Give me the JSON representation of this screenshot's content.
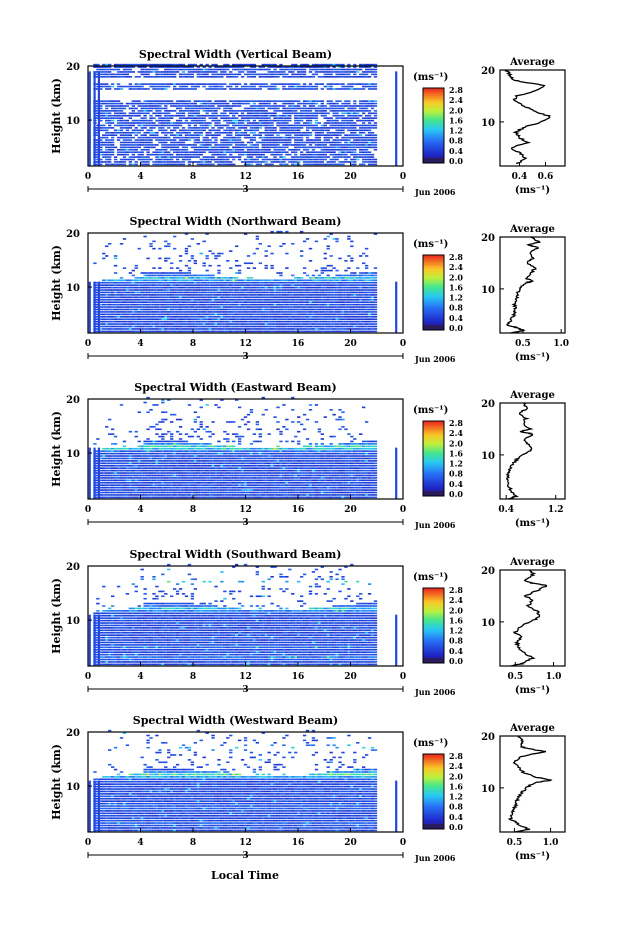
{
  "figure": {
    "xlabel": "Local Time",
    "date_label": "Jun 2006",
    "day_label": "3",
    "ylabel": "Height (km)",
    "unit_label": "(ms⁻¹)",
    "average_title": "Average",
    "average_unit": "(ms⁻¹)"
  },
  "chart_data": [
    {
      "type": "heatmap",
      "title": "Spectral Width (Vertical Beam)",
      "xlabel": "Local Time",
      "ylabel": "Height (km)",
      "xlim": [
        0,
        24
      ],
      "ylim": [
        1.5,
        20
      ],
      "xticks": [
        "0",
        "4",
        "8",
        "12",
        "16",
        "20",
        "0"
      ],
      "yticks": [
        "10",
        "20"
      ],
      "colorbar": {
        "label": "(ms⁻¹)",
        "ticks": [
          "0.0",
          "0.4",
          "0.8",
          "1.2",
          "1.6",
          "2.0",
          "2.4",
          "2.8"
        ],
        "range": [
          0,
          3.0
        ]
      },
      "missing_frac": 0.18,
      "bands": [
        {
          "h": 19,
          "v": 0.6
        },
        {
          "h": 16,
          "v": 0.8
        },
        {
          "h": 12,
          "v": 0.7
        },
        {
          "h": 7,
          "v": 0.5
        }
      ],
      "gaps": [
        [
          13.8,
          15.5
        ],
        [
          16.8,
          17.6
        ]
      ],
      "average": {
        "title": "Average",
        "xlabel": "(ms⁻¹)",
        "xlim": [
          0.25,
          0.75
        ],
        "xticks": [
          "0.4",
          "0.6"
        ],
        "yticks": [
          "10",
          "20"
        ],
        "profile": [
          [
            2,
            0.38
          ],
          [
            3,
            0.45
          ],
          [
            4,
            0.4
          ],
          [
            5,
            0.33
          ],
          [
            6,
            0.46
          ],
          [
            7,
            0.4
          ],
          [
            8,
            0.37
          ],
          [
            9,
            0.44
          ],
          [
            10,
            0.57
          ],
          [
            11,
            0.64
          ],
          [
            12,
            0.52
          ],
          [
            13,
            0.44
          ],
          [
            14,
            0.36
          ],
          [
            15,
            0.38
          ],
          [
            16,
            0.52
          ],
          [
            17,
            0.6
          ],
          [
            17.5,
            0.47
          ],
          [
            18,
            0.36
          ],
          [
            19,
            0.33
          ],
          [
            20,
            0.3
          ]
        ]
      }
    },
    {
      "type": "heatmap",
      "title": "Spectral Width (Northward Beam)",
      "xlabel": "Local Time",
      "ylabel": "Height (km)",
      "xlim": [
        0,
        24
      ],
      "ylim": [
        1.5,
        20
      ],
      "xticks": [
        "0",
        "4",
        "8",
        "12",
        "16",
        "20",
        "0"
      ],
      "yticks": [
        "10",
        "20"
      ],
      "colorbar": {
        "label": "(ms⁻¹)",
        "ticks": [
          "0.0",
          "0.4",
          "0.8",
          "1.2",
          "1.6",
          "2.0",
          "2.4",
          "2.8"
        ],
        "range": [
          0,
          3.0
        ]
      },
      "tropopause": 11.5,
      "bands": [
        {
          "h": 11.5,
          "v": 1.6
        },
        {
          "h": 4,
          "v": 0.5
        }
      ],
      "average": {
        "title": "Average",
        "xlabel": "(ms⁻¹)",
        "xlim": [
          0.2,
          1.05
        ],
        "xticks": [
          "0.5",
          "1.0"
        ],
        "yticks": [
          "10",
          "20"
        ],
        "profile": [
          [
            1.5,
            0.35
          ],
          [
            2,
            0.5
          ],
          [
            2.5,
            0.42
          ],
          [
            3,
            0.3
          ],
          [
            4,
            0.34
          ],
          [
            5,
            0.38
          ],
          [
            6,
            0.4
          ],
          [
            7,
            0.39
          ],
          [
            8,
            0.41
          ],
          [
            9,
            0.43
          ],
          [
            10,
            0.46
          ],
          [
            11,
            0.52
          ],
          [
            11.5,
            0.62
          ],
          [
            12,
            0.55
          ],
          [
            13,
            0.6
          ],
          [
            14,
            0.66
          ],
          [
            15,
            0.55
          ],
          [
            16,
            0.64
          ],
          [
            17,
            0.58
          ],
          [
            18,
            0.7
          ],
          [
            18.5,
            0.56
          ],
          [
            19,
            0.72
          ],
          [
            20,
            0.6
          ]
        ]
      }
    },
    {
      "type": "heatmap",
      "title": "Spectral Width (Eastward Beam)",
      "xlabel": "Local Time",
      "ylabel": "Height (km)",
      "xlim": [
        0,
        24
      ],
      "ylim": [
        1.5,
        20
      ],
      "xticks": [
        "0",
        "4",
        "8",
        "12",
        "16",
        "20",
        "0"
      ],
      "yticks": [
        "10",
        "20"
      ],
      "colorbar": {
        "label": "(ms⁻¹)",
        "ticks": [
          "0.0",
          "0.4",
          "0.8",
          "1.2",
          "1.6",
          "2.0",
          "2.4",
          "2.8"
        ],
        "range": [
          0,
          3.0
        ]
      },
      "tropopause": 11.0,
      "bands": [
        {
          "h": 11,
          "v": 1.9
        },
        {
          "h": 4,
          "v": 0.5
        }
      ],
      "average": {
        "title": "Average",
        "xlabel": "(ms⁻¹)",
        "xlim": [
          0.3,
          1.35
        ],
        "xticks": [
          "0.4",
          "1.2"
        ],
        "yticks": [
          "10",
          "20"
        ],
        "profile": [
          [
            1.5,
            0.45
          ],
          [
            2,
            0.55
          ],
          [
            3,
            0.48
          ],
          [
            4,
            0.44
          ],
          [
            5,
            0.42
          ],
          [
            6,
            0.43
          ],
          [
            7,
            0.46
          ],
          [
            8,
            0.5
          ],
          [
            9,
            0.56
          ],
          [
            10,
            0.66
          ],
          [
            11,
            0.82
          ],
          [
            12,
            0.76
          ],
          [
            13,
            0.7
          ],
          [
            14,
            0.84
          ],
          [
            14.5,
            0.62
          ],
          [
            15,
            0.78
          ],
          [
            16,
            0.66
          ],
          [
            17,
            0.72
          ],
          [
            18,
            0.62
          ],
          [
            19,
            0.74
          ],
          [
            20,
            0.68
          ]
        ]
      }
    },
    {
      "type": "heatmap",
      "title": "Spectral Width (Southward Beam)",
      "xlabel": "Local Time",
      "ylabel": "Height (km)",
      "xlim": [
        0,
        24
      ],
      "ylim": [
        1.5,
        20
      ],
      "xticks": [
        "0",
        "4",
        "8",
        "12",
        "16",
        "20",
        "0"
      ],
      "yticks": [
        "10",
        "20"
      ],
      "colorbar": {
        "label": "(ms⁻¹)",
        "ticks": [
          "0.0",
          "0.4",
          "0.8",
          "1.2",
          "1.6",
          "2.0",
          "2.4",
          "2.8"
        ],
        "range": [
          0,
          3.0
        ]
      },
      "tropopause": 12.0,
      "bands": [
        {
          "h": 12,
          "v": 1.5
        },
        {
          "h": 17,
          "v": 1.6
        },
        {
          "h": 5,
          "v": 0.9
        },
        {
          "h": 3,
          "v": 1.0
        }
      ],
      "average": {
        "title": "Average",
        "xlabel": "(ms⁻¹)",
        "xlim": [
          0.3,
          1.15
        ],
        "xticks": [
          "0.5",
          "1.0"
        ],
        "yticks": [
          "10",
          "20"
        ],
        "profile": [
          [
            1.5,
            0.45
          ],
          [
            2,
            0.6
          ],
          [
            3,
            0.72
          ],
          [
            4,
            0.63
          ],
          [
            5,
            0.55
          ],
          [
            6,
            0.52
          ],
          [
            7,
            0.58
          ],
          [
            8,
            0.5
          ],
          [
            9,
            0.55
          ],
          [
            10,
            0.7
          ],
          [
            11,
            0.82
          ],
          [
            12,
            0.8
          ],
          [
            13,
            0.66
          ],
          [
            14,
            0.72
          ],
          [
            15,
            0.64
          ],
          [
            16,
            0.78
          ],
          [
            17,
            0.92
          ],
          [
            17.5,
            0.7
          ],
          [
            18,
            0.62
          ],
          [
            19,
            0.74
          ],
          [
            20,
            0.7
          ]
        ]
      }
    },
    {
      "type": "heatmap",
      "title": "Spectral Width (Westward Beam)",
      "xlabel": "Local Time",
      "ylabel": "Height (km)",
      "xlim": [
        0,
        24
      ],
      "ylim": [
        1.5,
        20
      ],
      "xticks": [
        "0",
        "4",
        "8",
        "12",
        "16",
        "20",
        "0"
      ],
      "yticks": [
        "10",
        "20"
      ],
      "colorbar": {
        "label": "(ms⁻¹)",
        "ticks": [
          "0.0",
          "0.4",
          "0.8",
          "1.2",
          "1.6",
          "2.0",
          "2.4",
          "2.8"
        ],
        "range": [
          0,
          3.0
        ]
      },
      "tropopause": 12.0,
      "bands": [
        {
          "h": 12,
          "v": 1.8
        },
        {
          "h": 17,
          "v": 1.4
        },
        {
          "h": 6,
          "v": 1.0
        },
        {
          "h": 3,
          "v": 0.9
        }
      ],
      "average": {
        "title": "Average",
        "xlabel": "(ms⁻¹)",
        "xlim": [
          0.3,
          1.2
        ],
        "xticks": [
          "0.5",
          "1.0"
        ],
        "yticks": [
          "10",
          "20"
        ],
        "profile": [
          [
            1.5,
            0.5
          ],
          [
            2,
            0.7
          ],
          [
            3,
            0.55
          ],
          [
            4,
            0.45
          ],
          [
            5,
            0.47
          ],
          [
            6,
            0.5
          ],
          [
            7,
            0.52
          ],
          [
            8,
            0.55
          ],
          [
            9,
            0.6
          ],
          [
            10,
            0.66
          ],
          [
            11,
            0.78
          ],
          [
            11.5,
            1.02
          ],
          [
            12,
            0.82
          ],
          [
            13,
            0.62
          ],
          [
            14,
            0.55
          ],
          [
            15,
            0.5
          ],
          [
            16,
            0.58
          ],
          [
            17,
            0.92
          ],
          [
            17.5,
            0.72
          ],
          [
            18,
            0.58
          ],
          [
            19,
            0.62
          ],
          [
            20,
            0.56
          ]
        ]
      }
    }
  ]
}
